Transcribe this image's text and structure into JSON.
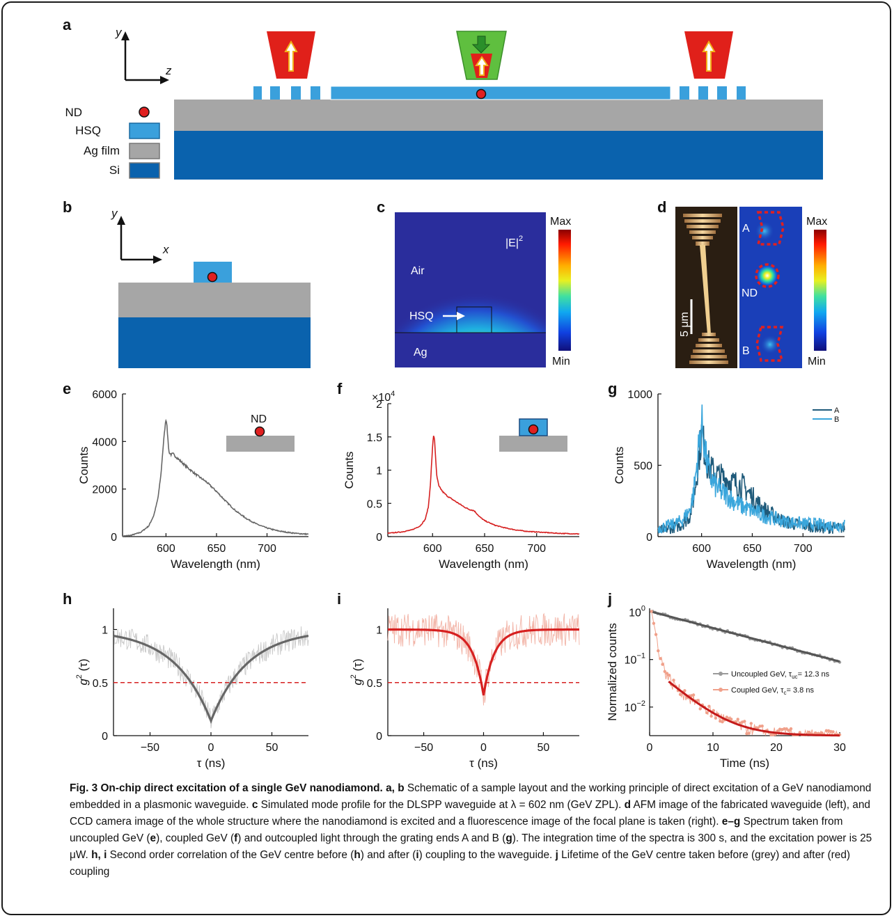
{
  "panels": {
    "a": "a",
    "b": "b",
    "c": "c",
    "d": "d",
    "e": "e",
    "f": "f",
    "g": "g",
    "h": "h",
    "i": "i",
    "j": "j"
  },
  "schematic_a": {
    "axis_y": "y",
    "axis_z": "z",
    "legend": [
      "ND",
      "HSQ",
      "Ag film",
      "Si"
    ],
    "colors": {
      "nd": "#e02020",
      "hsq": "#3aa0dc",
      "ag": "#a6a6a6",
      "si": "#0a62ad",
      "excite": "#5fbf3f",
      "collect": "#e0201a"
    }
  },
  "schematic_b": {
    "axis_y": "y",
    "axis_x": "x"
  },
  "panel_c": {
    "title": "|E|",
    "title_sup": "2",
    "air": "Air",
    "hsq": "HSQ",
    "ag": "Ag",
    "scale_max": "Max",
    "scale_min": "Min"
  },
  "panel_d": {
    "label_a": "A",
    "label_nd": "ND",
    "label_b": "B",
    "scalebar": "5 μm",
    "scale_max": "Max",
    "scale_min": "Min"
  },
  "chart_data": [
    {
      "panel": "e",
      "type": "line",
      "xlabel": "Wavelength (nm)",
      "ylabel": "Counts",
      "xlim": [
        557,
        741
      ],
      "ylim": [
        0,
        6000
      ],
      "xticks": [
        600,
        650,
        700
      ],
      "yticks": [
        0,
        2000,
        4000,
        6000
      ],
      "inset_label": "ND",
      "series": [
        {
          "color": "#666666",
          "x": [
            557,
            565,
            575,
            583,
            588,
            592,
            595,
            597,
            599,
            600,
            601,
            602,
            603,
            605,
            607,
            610,
            615,
            620,
            630,
            640,
            650,
            660,
            670,
            680,
            690,
            700,
            710,
            720,
            730,
            741
          ],
          "y": [
            20,
            50,
            180,
            450,
            900,
            1600,
            2600,
            3700,
            4600,
            4950,
            4700,
            4000,
            3550,
            3450,
            3480,
            3350,
            3150,
            2950,
            2600,
            2300,
            1900,
            1450,
            1050,
            750,
            520,
            360,
            250,
            180,
            130,
            100
          ]
        }
      ]
    },
    {
      "panel": "f",
      "type": "line",
      "xlabel": "Wavelength (nm)",
      "ylabel": "Counts",
      "xlim": [
        557,
        741
      ],
      "ylim": [
        0,
        20000
      ],
      "xticks": [
        600,
        650,
        700
      ],
      "yticks": [
        0,
        5000,
        10000,
        15000,
        20000
      ],
      "ytick_labels": [
        "0",
        "0.5",
        "1",
        "1.5",
        "2"
      ],
      "y_multiplier": "×10",
      "y_multiplier_exp": "4",
      "series": [
        {
          "color": "#d62020",
          "x": [
            557,
            570,
            580,
            588,
            593,
            596,
            598,
            600,
            601,
            602,
            603,
            604,
            606,
            610,
            615,
            620,
            630,
            635,
            640,
            645,
            650,
            660,
            670,
            680,
            690,
            700,
            710,
            720,
            730,
            741
          ],
          "y": [
            500,
            700,
            1000,
            1600,
            2600,
            4500,
            8000,
            13500,
            15300,
            14500,
            11500,
            9200,
            7600,
            6700,
            6000,
            5500,
            4500,
            4100,
            3900,
            3000,
            2400,
            1700,
            1300,
            1000,
            800,
            700,
            600,
            500,
            450,
            400
          ]
        }
      ]
    },
    {
      "panel": "g",
      "type": "line",
      "xlabel": "Wavelength (nm)",
      "ylabel": "Counts",
      "xlim": [
        557,
        741
      ],
      "ylim": [
        0,
        1000
      ],
      "xticks": [
        600,
        650,
        700
      ],
      "yticks": [
        0,
        500,
        1000
      ],
      "series": [
        {
          "name": "A",
          "color": "#1f5a7a",
          "x": [
            557,
            570,
            580,
            588,
            592,
            595,
            598,
            600,
            602,
            605,
            608,
            612,
            618,
            625,
            630,
            635,
            640,
            645,
            650,
            660,
            670,
            680,
            690,
            700,
            710,
            720,
            730,
            741
          ],
          "y": [
            40,
            60,
            80,
            140,
            260,
            420,
            600,
            720,
            650,
            530,
            480,
            450,
            420,
            400,
            380,
            370,
            360,
            320,
            280,
            200,
            150,
            110,
            90,
            80,
            70,
            60,
            60,
            60
          ]
        },
        {
          "name": "B",
          "color": "#3aa6dc",
          "x": [
            557,
            570,
            580,
            588,
            592,
            595,
            598,
            600,
            602,
            605,
            608,
            612,
            618,
            625,
            630,
            640,
            650,
            660,
            670,
            680,
            690,
            700,
            710,
            720,
            730,
            741
          ],
          "y": [
            60,
            80,
            110,
            180,
            300,
            480,
            680,
            790,
            700,
            520,
            430,
            370,
            320,
            290,
            260,
            210,
            180,
            150,
            130,
            110,
            100,
            90,
            90,
            80,
            80,
            80
          ]
        }
      ]
    },
    {
      "panel": "h",
      "type": "scatter",
      "xlabel": "τ (ns)",
      "ylabel": "g²(τ)",
      "ylabel_parts": {
        "g": "g",
        "sup": "2",
        "arg": " (τ)"
      },
      "xlim": [
        -80,
        80
      ],
      "ylim": [
        0,
        1.2
      ],
      "xticks": [
        -50,
        0,
        50
      ],
      "yticks": [
        0,
        0.5,
        1
      ],
      "threshold": 0.5,
      "fit": {
        "color": "#666666",
        "g0": 0.14,
        "tau_ns": 30
      },
      "points_color": "#c8c8c8"
    },
    {
      "panel": "i",
      "type": "scatter",
      "xlabel": "τ (ns)",
      "ylabel": "g²(τ)",
      "ylabel_parts": {
        "g": "g",
        "sup": "2",
        "arg": " (τ)"
      },
      "xlim": [
        -80,
        80
      ],
      "ylim": [
        0,
        1.2
      ],
      "xticks": [
        -50,
        0,
        50
      ],
      "yticks": [
        0,
        0.5,
        1
      ],
      "threshold": 0.5,
      "fit": {
        "color": "#d62020",
        "g0": 0.38,
        "tau_ns": 9
      },
      "points_color": "#f2b3a6"
    },
    {
      "panel": "j",
      "type": "scatter",
      "xlabel": "Time (ns)",
      "ylabel": "Normalized counts",
      "xlim": [
        0,
        30
      ],
      "ylim": [
        0.0025,
        1.2
      ],
      "yscale": "log",
      "xticks": [
        0,
        10,
        20,
        30
      ],
      "yticks": [
        1,
        0.1,
        0.01
      ],
      "ytick_base": "10",
      "ytick_exps": [
        "0",
        "−1",
        "−2"
      ],
      "series": [
        {
          "name": "Uncoupled GeV, τuc= 12.3 ns",
          "color": "#9a9a9a",
          "fit_color": "#555555",
          "tau_ns": 12.3,
          "amp": 1.0,
          "floor": 0
        },
        {
          "name": "Coupled GeV, τc= 3.8 ns",
          "color": "#f0a08a",
          "fit_color": "#c41a1a",
          "tau_ns": 3.8,
          "amp": 0.032,
          "floor": 0.0025
        }
      ],
      "legend": [
        {
          "prefix": "Uncoupled GeV, τ",
          "sub": "uc",
          "suffix": "= 12.3 ns"
        },
        {
          "prefix": "Coupled GeV, τ",
          "sub": "c",
          "suffix": "= 3.8 ns"
        }
      ]
    }
  ],
  "caption": {
    "title": "Fig. 3 On-chip direct excitation of a single GeV nanodiamond.",
    "p1_lbl": "a, b",
    "p1": " Schematic of a sample layout and the working principle of direct excitation of a GeV nanodiamond embedded in a plasmonic waveguide. ",
    "p2_lbl": "c",
    "p2": " Simulated mode profile for the DLSPP waveguide at λ = 602 nm (GeV ZPL). ",
    "p3_lbl": "d",
    "p3": " AFM image of the fabricated waveguide (left), and CCD camera image of the whole structure where the nanodiamond is excited and a fluorescence image of the focal plane is taken (right). ",
    "p4_lbl": "e–g",
    "p4": " Spectrum taken from uncoupled GeV (",
    "p4_e": "e",
    "p4b": "), coupled GeV (",
    "p4_f": "f",
    "p4c": ") and outcoupled light through the grating ends A and B (",
    "p4_g": "g",
    "p4d": "). The integration time of the spectra is 300 s, and the excitation power is 25 μW. ",
    "p5_lbl": "h, i",
    "p5": " Second order correlation of the GeV centre before (",
    "p5_h": "h",
    "p5b": ") and after (",
    "p5_i": "i",
    "p5c": ") coupling to the waveguide. ",
    "p6_lbl": "j",
    "p6": " Lifetime of the GeV centre taken before (grey) and after (red) coupling"
  }
}
